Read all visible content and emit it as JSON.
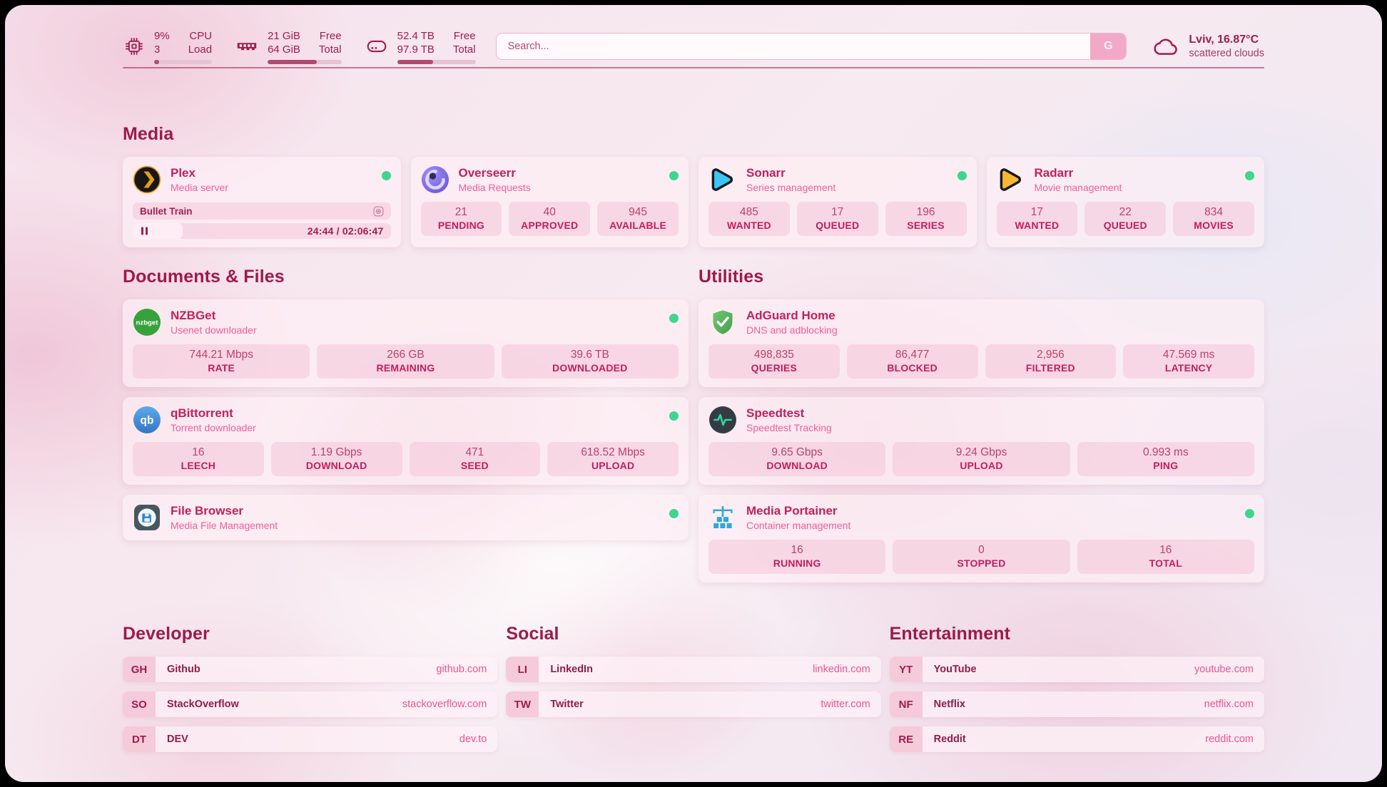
{
  "system": {
    "cpu": {
      "line1": "9%",
      "line2": "3",
      "label1": "CPU",
      "label2": "Load",
      "fill": 9,
      "online": true
    },
    "memory": {
      "line1": "21 GiB",
      "line2": "64 GiB",
      "label1": "Free",
      "label2": "Total",
      "fill": 67,
      "online": true
    },
    "storage": {
      "line1": "52.4 TB",
      "line2": "97.9 TB",
      "label1": "Free",
      "label2": "Total",
      "fill": 46,
      "online": true
    }
  },
  "search": {
    "placeholder": "Search...",
    "button": "G"
  },
  "weather": {
    "summary": "Lviv, 16.87°C",
    "condition": "scattered clouds"
  },
  "media": {
    "heading": "Media",
    "plex": {
      "title": "Plex",
      "subtitle": "Media server",
      "online": true,
      "now_playing": "Bullet Train",
      "time": "24:44 / 02:06:47",
      "progress": 19.5
    },
    "overseerr": {
      "title": "Overseerr",
      "subtitle": "Media Requests",
      "online": true,
      "stats": [
        {
          "value": "21",
          "label": "PENDING"
        },
        {
          "value": "40",
          "label": "APPROVED"
        },
        {
          "value": "945",
          "label": "AVAILABLE"
        }
      ]
    },
    "sonarr": {
      "title": "Sonarr",
      "subtitle": "Series management",
      "online": true,
      "stats": [
        {
          "value": "485",
          "label": "WANTED"
        },
        {
          "value": "17",
          "label": "QUEUED"
        },
        {
          "value": "196",
          "label": "SERIES"
        }
      ]
    },
    "radarr": {
      "title": "Radarr",
      "subtitle": "Movie management",
      "online": true,
      "stats": [
        {
          "value": "17",
          "label": "WANTED"
        },
        {
          "value": "22",
          "label": "QUEUED"
        },
        {
          "value": "834",
          "label": "MOVIES"
        }
      ]
    }
  },
  "documents": {
    "heading": "Documents & Files",
    "nzbget": {
      "title": "NZBGet",
      "subtitle": "Usenet downloader",
      "online": true,
      "stats": [
        {
          "value": "744.21 Mbps",
          "label": "RATE"
        },
        {
          "value": "266 GB",
          "label": "REMAINING"
        },
        {
          "value": "39.6 TB",
          "label": "DOWNLOADED"
        }
      ]
    },
    "qbittorrent": {
      "title": "qBittorrent",
      "subtitle": "Torrent downloader",
      "online": true,
      "stats": [
        {
          "value": "16",
          "label": "LEECH"
        },
        {
          "value": "1.19 Gbps",
          "label": "DOWNLOAD"
        },
        {
          "value": "471",
          "label": "SEED"
        },
        {
          "value": "618.52 Mbps",
          "label": "UPLOAD"
        }
      ]
    },
    "filebrowser": {
      "title": "File Browser",
      "subtitle": "Media File Management",
      "online": true
    }
  },
  "utilities": {
    "heading": "Utilities",
    "adguard": {
      "title": "AdGuard Home",
      "subtitle": "DNS and adblocking",
      "online": false,
      "stats": [
        {
          "value": "498,835",
          "label": "QUERIES"
        },
        {
          "value": "86,477",
          "label": "BLOCKED"
        },
        {
          "value": "2,956",
          "label": "FILTERED"
        },
        {
          "value": "47.569 ms",
          "label": "LATENCY"
        }
      ]
    },
    "speedtest": {
      "title": "Speedtest",
      "subtitle": "Speedtest Tracking",
      "online": false,
      "stats": [
        {
          "value": "9.65 Gbps",
          "label": "DOWNLOAD"
        },
        {
          "value": "9.24 Gbps",
          "label": "UPLOAD"
        },
        {
          "value": "0.993 ms",
          "label": "PING"
        }
      ]
    },
    "portainer": {
      "title": "Media Portainer",
      "subtitle": "Container management",
      "online": true,
      "stats": [
        {
          "value": "16",
          "label": "RUNNING"
        },
        {
          "value": "0",
          "label": "STOPPED"
        },
        {
          "value": "16",
          "label": "TOTAL"
        }
      ]
    }
  },
  "bookmarks": {
    "developer": {
      "heading": "Developer",
      "links": [
        {
          "abbr": "GH",
          "name": "Github",
          "url": "github.com"
        },
        {
          "abbr": "SO",
          "name": "StackOverflow",
          "url": "stackoverflow.com"
        },
        {
          "abbr": "DT",
          "name": "DEV",
          "url": "dev.to"
        }
      ]
    },
    "social": {
      "heading": "Social",
      "links": [
        {
          "abbr": "LI",
          "name": "LinkedIn",
          "url": "linkedin.com"
        },
        {
          "abbr": "TW",
          "name": "Twitter",
          "url": "twitter.com"
        }
      ]
    },
    "entertainment": {
      "heading": "Entertainment",
      "links": [
        {
          "abbr": "YT",
          "name": "YouTube",
          "url": "youtube.com"
        },
        {
          "abbr": "NF",
          "name": "Netflix",
          "url": "netflix.com"
        },
        {
          "abbr": "RE",
          "name": "Reddit",
          "url": "reddit.com"
        }
      ]
    }
  },
  "colors": {
    "accent": "#9e1c4c",
    "title": "#c2205c",
    "subtitle": "#ee5f9b",
    "status_online": "#3ed68e"
  }
}
